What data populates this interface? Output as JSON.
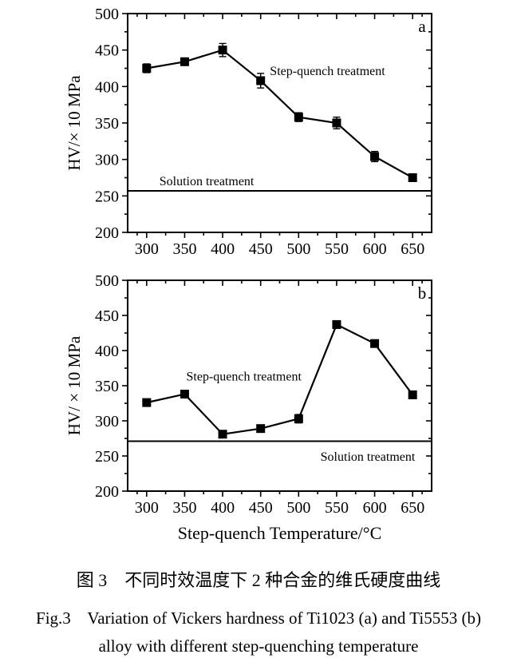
{
  "colors": {
    "ink": "#000000",
    "background": "#ffffff"
  },
  "caption": {
    "chinese": "图 3　不同时效温度下 2 种合金的维氏硬度曲线",
    "english_line1": "Fig.3    Variation of Vickers hardness of Ti1023 (a) and Ti5553 (b)",
    "english_line2": "alloy with different step-quenching temperature"
  },
  "chart_data": [
    {
      "id": "a",
      "type": "line",
      "panel_label": "a",
      "x": [
        300,
        350,
        400,
        450,
        500,
        550,
        600,
        650
      ],
      "series": [
        {
          "name": "Step-quench treatment",
          "values": [
            425,
            434,
            450,
            408,
            358,
            350,
            304,
            275
          ],
          "errors": [
            6,
            5,
            9,
            10,
            6,
            8,
            7,
            0
          ],
          "marker": "square"
        }
      ],
      "reference_line": {
        "value": 257,
        "label": "Solution treatment",
        "label_x": 379,
        "label_y": 271
      },
      "annotations": [
        {
          "text": "Step-quench treatment",
          "x": 538,
          "y": 422
        }
      ],
      "xlim": [
        275,
        675
      ],
      "ylim": [
        200,
        500
      ],
      "xticks": [
        300,
        350,
        400,
        450,
        500,
        550,
        600,
        650
      ],
      "yticks": [
        200,
        250,
        300,
        350,
        400,
        450,
        500
      ],
      "xlabel": "",
      "ylabel": "HV/× 10 MPa",
      "grid": false,
      "legend": "none"
    },
    {
      "id": "b",
      "type": "line",
      "panel_label": "b",
      "x": [
        300,
        350,
        400,
        450,
        500,
        550,
        600,
        650
      ],
      "series": [
        {
          "name": "Step-quench treatment",
          "values": [
            326,
            338,
            281,
            289,
            303,
            437,
            410,
            337
          ],
          "errors": [
            0,
            0,
            0,
            0,
            6,
            0,
            0,
            0
          ],
          "marker": "square"
        }
      ],
      "reference_line": {
        "value": 271,
        "label": "Solution treatment",
        "label_x": 591,
        "label_y": 250
      },
      "annotations": [
        {
          "text": "Step-quench treatment",
          "x": 428,
          "y": 364
        }
      ],
      "xlim": [
        275,
        675
      ],
      "ylim": [
        200,
        500
      ],
      "xticks": [
        300,
        350,
        400,
        450,
        500,
        550,
        600,
        650
      ],
      "yticks": [
        200,
        250,
        300,
        350,
        400,
        450,
        500
      ],
      "xlabel": "Step-quench Temperature/°C",
      "ylabel": "HV/ × 10 MPa",
      "grid": false,
      "legend": "none"
    }
  ]
}
